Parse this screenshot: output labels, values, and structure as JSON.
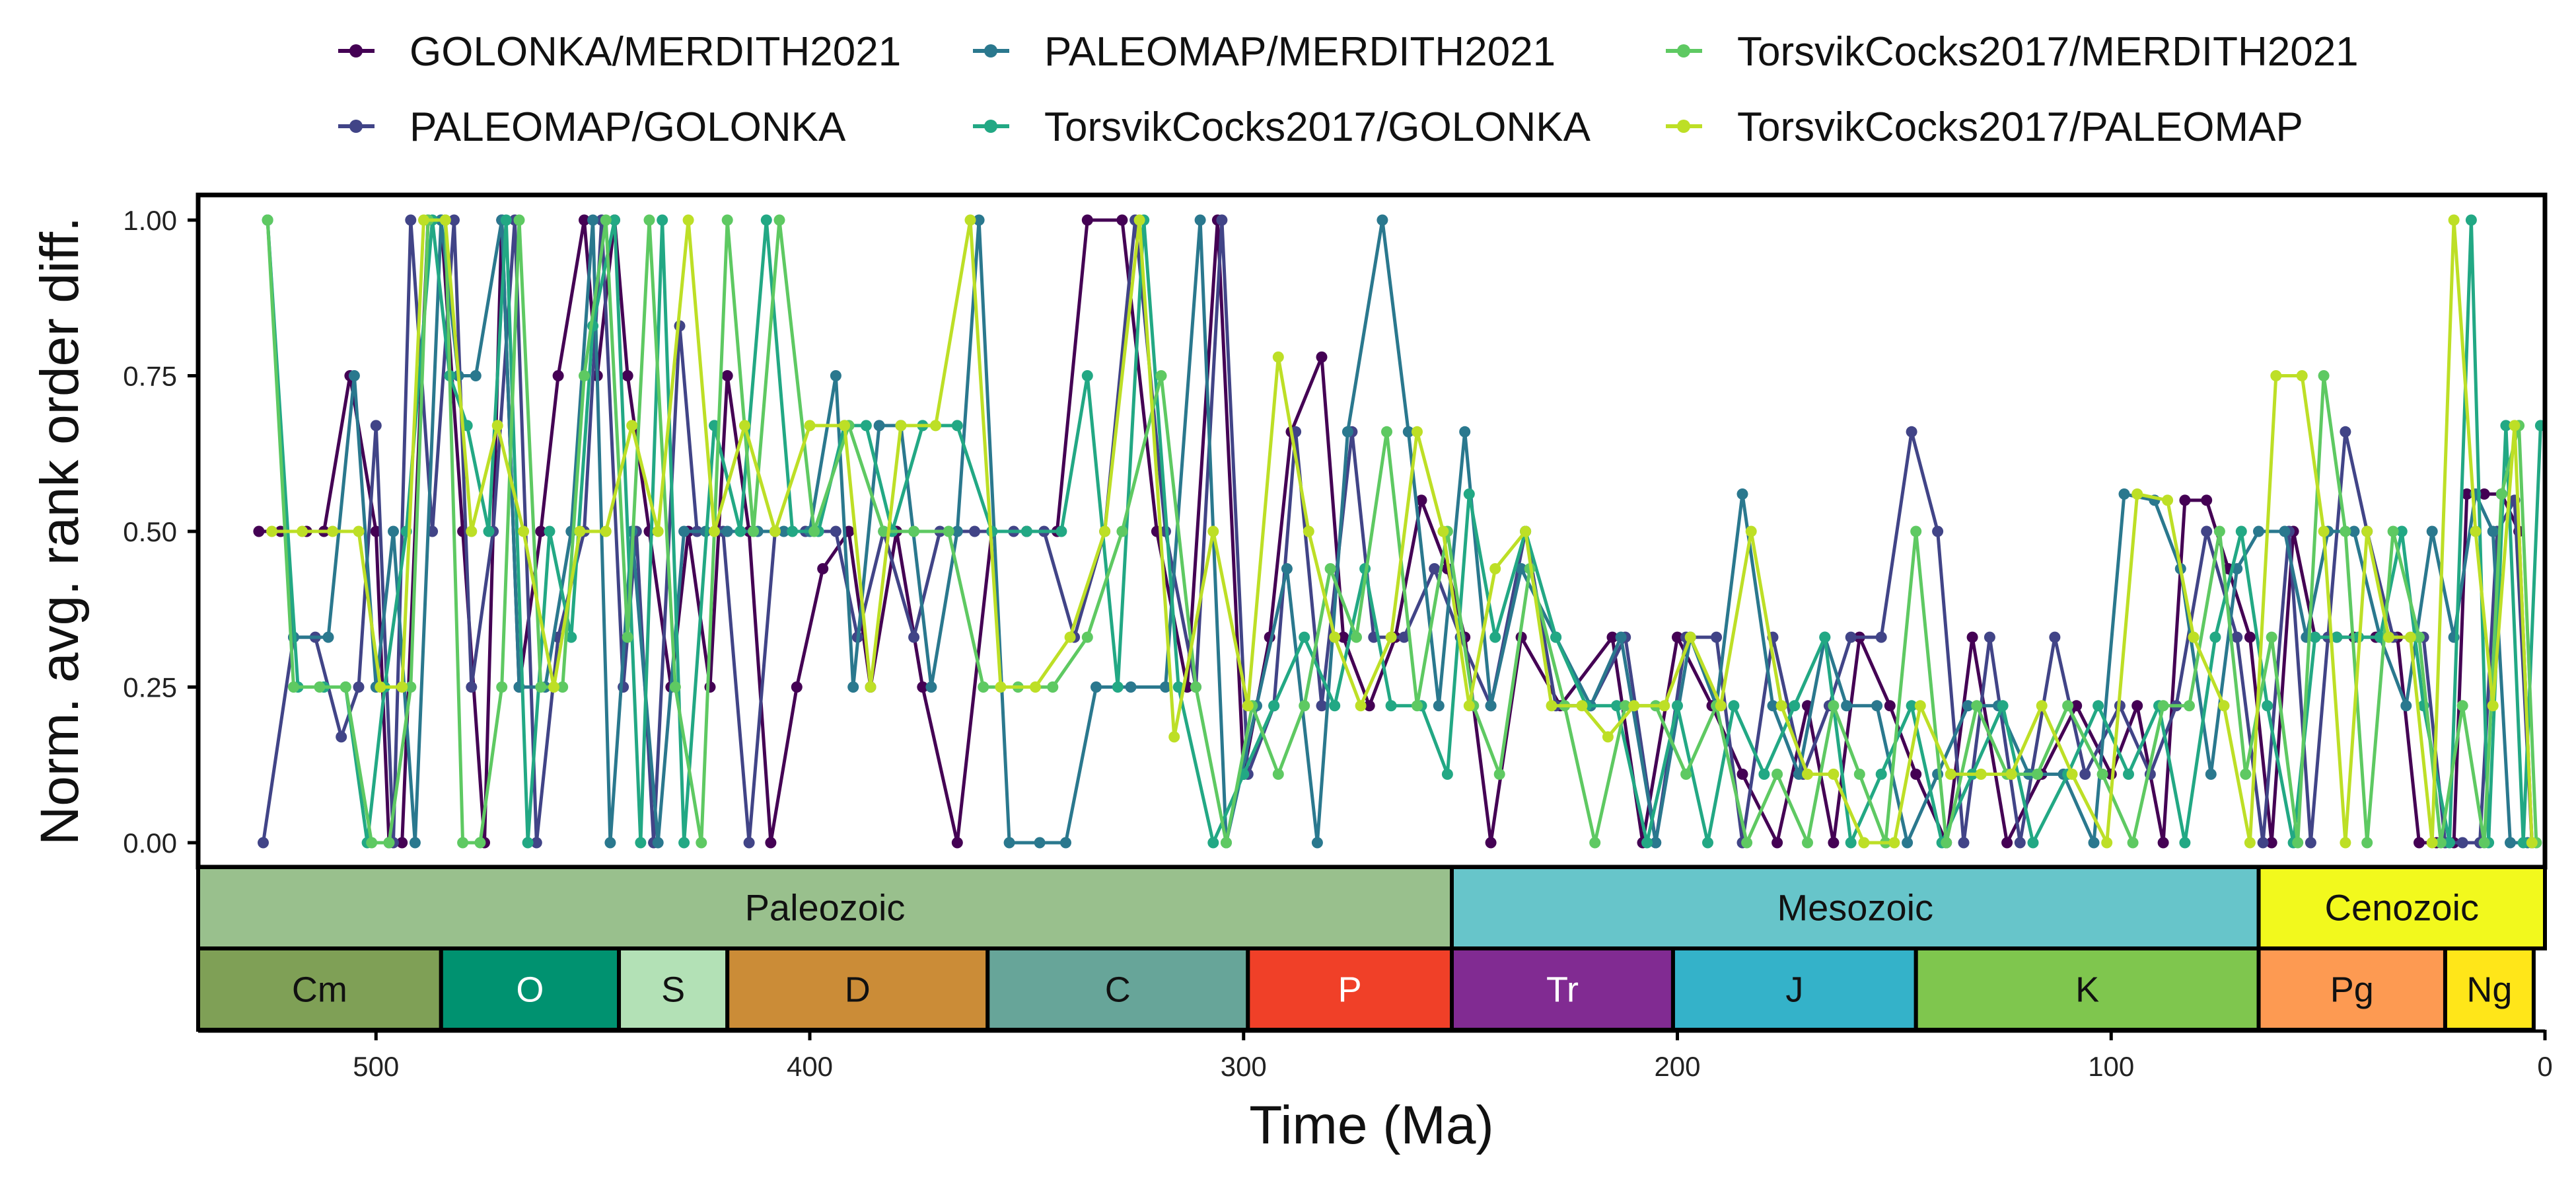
{
  "chart_data": {
    "type": "line",
    "title": "",
    "xlabel": "Time (Ma)",
    "ylabel": "Norm. avg. rank order diff.",
    "xlim": [
      541,
      0
    ],
    "ylim": [
      0,
      1
    ],
    "x_ticks": [
      500,
      400,
      300,
      200,
      100,
      0
    ],
    "x_tick_labels": [
      "500",
      "400",
      "300",
      "200",
      "100",
      "0"
    ],
    "y_ticks": [
      0,
      0.25,
      0.5,
      0.75,
      1.0
    ],
    "y_tick_labels": [
      "0.00",
      "0.25",
      "0.50",
      "0.75",
      "1.00"
    ],
    "grid": false,
    "legend_position": "top",
    "series": [
      {
        "name": "GOLONKA/MERDITH2021",
        "color": "#440154",
        "x": [
          527,
          522,
          516,
          512,
          506,
          500,
          497,
          494,
          488,
          485,
          480,
          475,
          471,
          467,
          462,
          458,
          452,
          449,
          445,
          442,
          437,
          432,
          428,
          423,
          419,
          414,
          409,
          403,
          397,
          391,
          386,
          380,
          374,
          366,
          358,
          350,
          343,
          336,
          328,
          320,
          313,
          306,
          300,
          294,
          289,
          282,
          277,
          271,
          265,
          259,
          253,
          249,
          243,
          236,
          227,
          215,
          208,
          200,
          192,
          185,
          177,
          170,
          164,
          158,
          151,
          145,
          138,
          132,
          124,
          116,
          108,
          100,
          94,
          88,
          83,
          78,
          73,
          68,
          63,
          58,
          53,
          48,
          44,
          39,
          34,
          29,
          25,
          21,
          18,
          14,
          10,
          6,
          3
        ],
        "y": [
          0.5,
          0.5,
          0.5,
          0.5,
          0.75,
          0.5,
          0.0,
          0.0,
          1.0,
          1.0,
          0.5,
          0.0,
          1.0,
          0.25,
          0.5,
          0.75,
          1.0,
          0.75,
          1.0,
          0.75,
          0.5,
          0.25,
          0.5,
          0.25,
          0.75,
          0.5,
          0.0,
          0.25,
          0.44,
          0.5,
          0.25,
          0.5,
          0.25,
          0.0,
          0.5,
          0.5,
          0.5,
          1.0,
          1.0,
          0.5,
          0.25,
          1.0,
          0.11,
          0.33,
          0.66,
          0.78,
          0.33,
          0.22,
          0.33,
          0.55,
          0.44,
          0.33,
          0.0,
          0.33,
          0.22,
          0.33,
          0.0,
          0.33,
          0.22,
          0.11,
          0.0,
          0.22,
          0.0,
          0.33,
          0.22,
          0.11,
          0.0,
          0.33,
          0.0,
          0.11,
          0.22,
          0.11,
          0.22,
          0.0,
          0.55,
          0.55,
          0.44,
          0.33,
          0.0,
          0.5,
          0.33,
          0.33,
          0.33,
          0.33,
          0.33,
          0.0,
          0.0,
          0.0,
          0.56,
          0.56,
          0.56,
          0.5,
          0.0
        ]
      },
      {
        "name": "PALEOMAP/GOLONKA",
        "color": "#414487",
        "x": [
          526,
          519,
          514,
          508,
          504,
          500,
          496,
          492,
          487,
          482,
          478,
          473,
          468,
          463,
          458,
          452,
          448,
          443,
          440,
          436,
          430,
          426,
          420,
          414,
          408,
          401,
          394,
          389,
          383,
          376,
          370,
          362,
          353,
          346,
          339,
          332,
          325,
          318,
          311,
          305,
          299,
          293,
          288,
          282,
          275,
          270,
          263,
          256,
          250,
          243,
          235,
          228,
          220,
          212,
          205,
          198,
          191,
          185,
          178,
          171,
          165,
          160,
          153,
          146,
          140,
          134,
          128,
          121,
          113,
          106,
          98,
          91,
          85,
          78,
          71,
          65,
          59,
          54,
          50,
          46,
          41,
          35,
          28,
          23,
          19,
          15,
          11,
          7,
          3
        ],
        "y": [
          0.0,
          0.33,
          0.33,
          0.17,
          0.25,
          0.67,
          0.0,
          1.0,
          0.5,
          1.0,
          0.25,
          0.5,
          1.0,
          0.0,
          0.33,
          0.5,
          1.0,
          0.25,
          0.5,
          0.0,
          0.83,
          0.5,
          0.5,
          0.0,
          0.5,
          0.5,
          0.5,
          0.33,
          0.5,
          0.33,
          0.5,
          0.5,
          0.5,
          0.5,
          0.33,
          0.5,
          1.0,
          0.5,
          0.25,
          1.0,
          0.11,
          0.22,
          0.66,
          0.22,
          0.66,
          0.33,
          0.33,
          0.44,
          0.33,
          0.22,
          0.5,
          0.22,
          0.22,
          0.33,
          0.0,
          0.33,
          0.33,
          0.0,
          0.33,
          0.11,
          0.22,
          0.33,
          0.33,
          0.66,
          0.5,
          0.0,
          0.33,
          0.0,
          0.33,
          0.11,
          0.22,
          0.11,
          0.22,
          0.5,
          0.33,
          0.0,
          0.5,
          0.0,
          0.33,
          0.66,
          0.5,
          0.33,
          0.33,
          0.0,
          0.0,
          0.0,
          0.5,
          0.55,
          0.0
        ]
      },
      {
        "name": "PALEOMAP/MERDITH2021",
        "color": "#2a788e",
        "x": [
          525,
          519,
          511,
          505,
          500,
          496,
          491,
          485,
          481,
          477,
          471,
          467,
          461,
          455,
          450,
          446,
          441,
          435,
          429,
          424,
          419,
          412,
          406,
          400,
          394,
          390,
          384,
          379,
          372,
          366,
          361,
          354,
          347,
          341,
          334,
          326,
          318,
          310,
          304,
          297,
          290,
          283,
          276,
          268,
          262,
          255,
          249,
          243,
          236,
          228,
          220,
          213,
          205,
          197,
          191,
          185,
          178,
          172,
          166,
          161,
          154,
          147,
          140,
          133,
          126,
          119,
          111,
          104,
          97,
          90,
          84,
          77,
          71,
          66,
          60,
          55,
          50,
          44,
          38,
          32,
          26,
          21,
          16,
          12,
          8,
          4
        ],
        "y": [
          1.0,
          0.33,
          0.33,
          0.75,
          0.25,
          0.5,
          0.0,
          1.0,
          0.75,
          0.75,
          1.0,
          0.25,
          0.25,
          0.5,
          1.0,
          0.0,
          0.5,
          0.0,
          0.5,
          0.5,
          0.5,
          0.5,
          0.5,
          0.5,
          0.75,
          0.25,
          0.67,
          0.67,
          0.25,
          0.5,
          1.0,
          0.0,
          0.0,
          0.0,
          0.25,
          0.25,
          0.25,
          1.0,
          0.0,
          0.22,
          0.44,
          0.0,
          0.66,
          1.0,
          0.66,
          0.22,
          0.66,
          0.22,
          0.44,
          0.33,
          0.22,
          0.33,
          0.0,
          0.33,
          0.22,
          0.56,
          0.22,
          0.11,
          0.33,
          0.22,
          0.22,
          0.0,
          0.11,
          0.22,
          0.22,
          0.11,
          0.11,
          0.0,
          0.56,
          0.55,
          0.44,
          0.11,
          0.44,
          0.5,
          0.5,
          0.33,
          0.5,
          0.5,
          0.33,
          0.22,
          0.5,
          0.33,
          0.56,
          0.5,
          0.0,
          0.0
        ]
      },
      {
        "name": "TorsvikCocks2017/GOLONKA",
        "color": "#22a884",
        "x": [
          525,
          518,
          512,
          507,
          502,
          498,
          493,
          487,
          483,
          479,
          474,
          470,
          465,
          460,
          455,
          450,
          445,
          439,
          434,
          429,
          422,
          416,
          410,
          404,
          398,
          392,
          387,
          381,
          374,
          366,
          358,
          350,
          342,
          336,
          329,
          323,
          315,
          307,
          300,
          293,
          286,
          279,
          272,
          266,
          259,
          253,
          248,
          242,
          235,
          228,
          221,
          214,
          207,
          200,
          193,
          187,
          180,
          173,
          166,
          160,
          153,
          146,
          139,
          132,
          125,
          118,
          110,
          103,
          96,
          89,
          83,
          76,
          70,
          64,
          58,
          53,
          48,
          43,
          38,
          33,
          28,
          22,
          17,
          13,
          9,
          5,
          1
        ],
        "y": [
          1.0,
          0.25,
          0.25,
          0.25,
          0.0,
          0.25,
          0.5,
          1.0,
          0.75,
          0.67,
          0.5,
          1.0,
          0.0,
          0.5,
          0.33,
          0.83,
          1.0,
          0.0,
          1.0,
          0.0,
          0.67,
          0.5,
          1.0,
          0.5,
          0.5,
          0.67,
          0.67,
          0.5,
          0.67,
          0.67,
          0.5,
          0.5,
          0.5,
          0.75,
          0.25,
          1.0,
          0.25,
          0.0,
          0.11,
          0.22,
          0.33,
          0.22,
          0.44,
          0.22,
          0.22,
          0.11,
          0.56,
          0.33,
          0.5,
          0.33,
          0.22,
          0.22,
          0.0,
          0.22,
          0.0,
          0.22,
          0.11,
          0.22,
          0.33,
          0.0,
          0.11,
          0.22,
          0.0,
          0.11,
          0.22,
          0.0,
          0.11,
          0.22,
          0.11,
          0.22,
          0.0,
          0.33,
          0.5,
          0.22,
          0.0,
          0.33,
          0.33,
          0.33,
          0.33,
          0.5,
          0.22,
          0.0,
          1.0,
          0.0,
          0.67,
          0.0,
          0.67
        ]
      },
      {
        "name": "TorsvikCocks2017/MERDITH2021",
        "color": "#5ec962",
        "x": [
          525,
          519,
          513,
          507,
          501,
          497,
          492,
          488,
          484,
          480,
          476,
          471,
          467,
          462,
          457,
          452,
          447,
          442,
          437,
          431,
          425,
          419,
          413,
          407,
          399,
          391,
          383,
          376,
          368,
          360,
          352,
          344,
          336,
          328,
          319,
          311,
          304,
          298,
          292,
          286,
          280,
          274,
          267,
          260,
          253,
          247,
          241,
          234,
          226,
          219,
          212,
          205,
          198,
          191,
          184,
          177,
          170,
          164,
          158,
          152,
          145,
          138,
          131,
          124,
          117,
          110,
          102,
          95,
          88,
          82,
          75,
          69,
          63,
          57,
          51,
          46,
          41,
          35,
          29,
          24,
          19,
          14,
          10,
          6,
          2
        ],
        "y": [
          1.0,
          0.25,
          0.25,
          0.25,
          0.0,
          0.0,
          0.25,
          1.0,
          1.0,
          0.0,
          0.0,
          0.25,
          1.0,
          0.25,
          0.25,
          0.75,
          1.0,
          0.33,
          1.0,
          0.25,
          0.0,
          1.0,
          0.5,
          1.0,
          0.5,
          0.67,
          0.5,
          0.5,
          0.5,
          0.25,
          0.25,
          0.25,
          0.33,
          0.5,
          0.75,
          0.25,
          0.0,
          0.22,
          0.11,
          0.22,
          0.44,
          0.33,
          0.66,
          0.22,
          0.5,
          0.22,
          0.11,
          0.44,
          0.22,
          0.0,
          0.22,
          0.22,
          0.11,
          0.22,
          0.0,
          0.11,
          0.0,
          0.22,
          0.11,
          0.0,
          0.5,
          0.0,
          0.22,
          0.11,
          0.11,
          0.22,
          0.11,
          0.0,
          0.22,
          0.22,
          0.5,
          0.11,
          0.33,
          0.0,
          0.75,
          0.5,
          0.0,
          0.5,
          0.33,
          0.0,
          0.22,
          0.0,
          0.56,
          0.67,
          0.0
        ]
      },
      {
        "name": "TorsvikCocks2017/PALEOMAP",
        "color": "#bddf26",
        "x": [
          524,
          517,
          510,
          504,
          499,
          494,
          489,
          484,
          478,
          472,
          466,
          459,
          453,
          447,
          441,
          435,
          428,
          422,
          415,
          408,
          400,
          392,
          386,
          379,
          371,
          363,
          356,
          348,
          340,
          332,
          324,
          316,
          307,
          299,
          292,
          285,
          279,
          273,
          266,
          260,
          254,
          248,
          242,
          235,
          229,
          222,
          216,
          210,
          203,
          197,
          190,
          183,
          176,
          170,
          164,
          157,
          150,
          144,
          137,
          130,
          123,
          116,
          109,
          101,
          94,
          87,
          81,
          74,
          68,
          62,
          56,
          51,
          46,
          41,
          36,
          31,
          26,
          21,
          16,
          12,
          7,
          3
        ],
        "y": [
          0.5,
          0.5,
          0.5,
          0.5,
          0.25,
          0.25,
          1.0,
          1.0,
          0.5,
          0.67,
          0.5,
          0.25,
          0.5,
          0.5,
          0.67,
          0.5,
          1.0,
          0.5,
          0.67,
          0.5,
          0.67,
          0.67,
          0.25,
          0.67,
          0.67,
          1.0,
          0.25,
          0.25,
          0.33,
          0.5,
          1.0,
          0.17,
          0.5,
          0.22,
          0.78,
          0.5,
          0.33,
          0.22,
          0.33,
          0.66,
          0.5,
          0.22,
          0.44,
          0.5,
          0.22,
          0.22,
          0.17,
          0.22,
          0.22,
          0.33,
          0.22,
          0.5,
          0.22,
          0.11,
          0.11,
          0.0,
          0.0,
          0.22,
          0.11,
          0.11,
          0.11,
          0.22,
          0.11,
          0.0,
          0.56,
          0.55,
          0.33,
          0.22,
          0.0,
          0.75,
          0.75,
          0.5,
          0.0,
          0.5,
          0.33,
          0.33,
          0.0,
          1.0,
          0.5,
          0.22,
          0.67,
          0.0
        ]
      }
    ],
    "eras": [
      {
        "label": "Paleozoic",
        "start": 541,
        "end": 252,
        "color": "#99c08d",
        "text_color": "#111111"
      },
      {
        "label": "Mesozoic",
        "start": 252,
        "end": 66,
        "color": "#67c5ca",
        "text_color": "#111111"
      },
      {
        "label": "Cenozoic",
        "start": 66,
        "end": 0,
        "color": "#f2f91d",
        "text_color": "#111111"
      }
    ],
    "periods": [
      {
        "label": "Cm",
        "start": 541,
        "end": 485,
        "color": "#7fa056",
        "text_color": "#111111"
      },
      {
        "label": "O",
        "start": 485,
        "end": 444,
        "color": "#009270",
        "text_color": "#ffffff"
      },
      {
        "label": "S",
        "start": 444,
        "end": 419,
        "color": "#b3e1b6",
        "text_color": "#111111"
      },
      {
        "label": "D",
        "start": 419,
        "end": 359,
        "color": "#cb8c37",
        "text_color": "#111111"
      },
      {
        "label": "C",
        "start": 359,
        "end": 299,
        "color": "#67a599",
        "text_color": "#111111"
      },
      {
        "label": "P",
        "start": 299,
        "end": 252,
        "color": "#f04028",
        "text_color": "#ffffff"
      },
      {
        "label": "Tr",
        "start": 252,
        "end": 201,
        "color": "#812b92",
        "text_color": "#ffffff"
      },
      {
        "label": "J",
        "start": 201,
        "end": 145,
        "color": "#34b2c9",
        "text_color": "#111111"
      },
      {
        "label": "K",
        "start": 145,
        "end": 66,
        "color": "#7fc64e",
        "text_color": "#111111"
      },
      {
        "label": "Pg",
        "start": 66,
        "end": 23,
        "color": "#fd9a52",
        "text_color": "#111111"
      },
      {
        "label": "Ng",
        "start": 23,
        "end": 2.6,
        "color": "#ffe619",
        "text_color": "#111111"
      }
    ]
  }
}
